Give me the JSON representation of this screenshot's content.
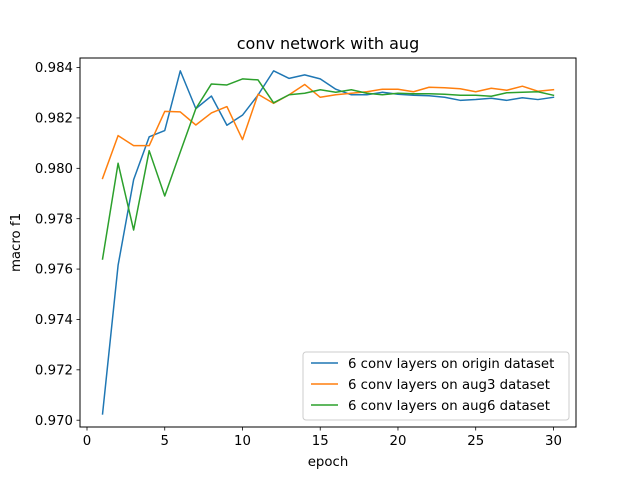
{
  "chart_data": {
    "type": "line",
    "title": "conv network with aug",
    "xlabel": "epoch",
    "ylabel": "macro f1",
    "xlim": [
      -0.45,
      31.45
    ],
    "ylim": [
      0.96973,
      0.98438
    ],
    "xticks": [
      0,
      5,
      10,
      15,
      20,
      25,
      30
    ],
    "xtick_labels": [
      "0",
      "5",
      "10",
      "15",
      "20",
      "25",
      "30"
    ],
    "yticks": [
      0.97,
      0.972,
      0.974,
      0.976,
      0.978,
      0.98,
      0.982,
      0.984
    ],
    "ytick_labels": [
      "0.970",
      "0.972",
      "0.974",
      "0.976",
      "0.978",
      "0.980",
      "0.982",
      "0.984"
    ],
    "grid": false,
    "legend_position": "lower right",
    "x": [
      1,
      2,
      3,
      4,
      5,
      6,
      7,
      8,
      9,
      10,
      11,
      12,
      13,
      14,
      15,
      16,
      17,
      18,
      19,
      20,
      21,
      22,
      23,
      24,
      25,
      26,
      27,
      28,
      29,
      30
    ],
    "series": [
      {
        "name": "6 conv layers on origin dataset",
        "color": "#1f77b4",
        "values": [
          0.97025,
          0.97615,
          0.97955,
          0.98125,
          0.9815,
          0.98387,
          0.98237,
          0.98287,
          0.98171,
          0.98211,
          0.98291,
          0.98387,
          0.98357,
          0.98371,
          0.98355,
          0.98314,
          0.98292,
          0.98292,
          0.98302,
          0.98294,
          0.9829,
          0.98288,
          0.98282,
          0.9827,
          0.98273,
          0.98278,
          0.9827,
          0.9828,
          0.98273,
          0.98282
        ]
      },
      {
        "name": "6 conv layers on aug3 dataset",
        "color": "#ff7f0e",
        "values": [
          0.9796,
          0.9813,
          0.9809,
          0.9809,
          0.98226,
          0.98224,
          0.98172,
          0.9822,
          0.98245,
          0.98114,
          0.98294,
          0.98258,
          0.98292,
          0.98333,
          0.98282,
          0.98292,
          0.98298,
          0.98304,
          0.98314,
          0.98314,
          0.98304,
          0.98322,
          0.9832,
          0.98316,
          0.98304,
          0.98318,
          0.9831,
          0.98326,
          0.98306,
          0.98312
        ]
      },
      {
        "name": "6 conv layers on aug6 dataset",
        "color": "#2ca02c",
        "values": [
          0.9764,
          0.9802,
          0.97755,
          0.9807,
          0.9789,
          0.98065,
          0.98237,
          0.98335,
          0.98331,
          0.98355,
          0.98351,
          0.9826,
          0.98292,
          0.98298,
          0.98312,
          0.98302,
          0.98312,
          0.98298,
          0.98292,
          0.98298,
          0.98296,
          0.98296,
          0.98294,
          0.9829,
          0.9829,
          0.98286,
          0.983,
          0.98302,
          0.98304,
          0.9829
        ]
      }
    ]
  }
}
